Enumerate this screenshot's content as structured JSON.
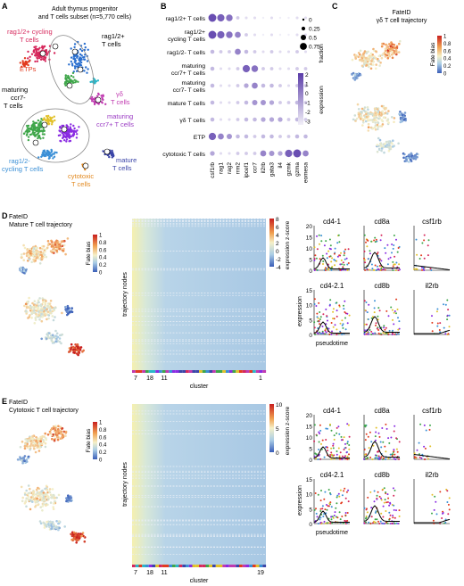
{
  "panelA": {
    "letter": "A",
    "title_line1": "Adult thymus progenitor",
    "title_line2": "and T cells subset (n=5,770 cells)",
    "labels": {
      "rag_cycling_1": "rag1/2+ cycling",
      "rag_cycling_2": "T cells",
      "etps": "ETPs",
      "rag_pos_1": "rag1/2+",
      "rag_pos_2": "T cells",
      "maturing_ccr7neg_1": "maturing",
      "maturing_ccr7neg_2": "ccr7-",
      "maturing_ccr7neg_3": "T cells",
      "gd_1": "γδ",
      "gd_2": "T cells",
      "maturing_ccr7pos_1": "maturing",
      "maturing_ccr7pos_2": "ccr7+ T cells",
      "rag_neg_cycling_1": "rag1/2-",
      "rag_neg_cycling_2": "cycling T cells",
      "mature_1": "mature",
      "mature_2": "T cells",
      "cytotoxic_1": "cytotoxic",
      "cytotoxic_2": "T cells"
    }
  },
  "panelB": {
    "letter": "B",
    "rows": [
      "rag1/2+ T cells",
      "rag1/2+ cycling T cells",
      "rag1/2- T cells",
      "maturing ccr7+ T cells",
      "maturing ccr7- T cells",
      "mature T cells",
      "γδ T cells",
      "ETP",
      "cytotoxic T cells"
    ],
    "row_display": [
      [
        "rag1/2+ T cells"
      ],
      [
        "rag1/2+",
        "cycling T cells"
      ],
      [
        "rag1/2- T cells"
      ],
      [
        "maturing",
        "ccr7+ T cells"
      ],
      [
        "maturing",
        "ccr7- T cells"
      ],
      [
        "mature T cells"
      ],
      [
        "γδ T cells"
      ],
      [
        "ETP"
      ],
      [
        "cytotoxic T cells"
      ]
    ],
    "genes": [
      "csf1rb",
      "rag1",
      "rag2",
      "rrm2",
      "ipcef1",
      "ccr7",
      "il2rb",
      "gata3",
      "il4",
      "gzmk",
      "gzma",
      "eomesa"
    ],
    "fraction_legend": {
      "title": "fraction",
      "values": [
        "0",
        "0.25",
        "0.5",
        "0.75"
      ]
    },
    "expression_legend": {
      "title": "expression",
      "ticks": [
        "2",
        "1",
        "0",
        "-1",
        "-2",
        "-3"
      ]
    }
  },
  "panelC": {
    "letter": "C",
    "title_line1": "FateID",
    "title_line2": "γδ T cell trajectory",
    "colorbar_title": "Fate bias",
    "colorbar_ticks": [
      "1",
      "0.8",
      "0.6",
      "0.4",
      "0.2",
      "0"
    ]
  },
  "panelD": {
    "letter": "D",
    "title_line1": "FateID",
    "title_line2": "Mature T cell trajectory",
    "colorbar_title": "Fate bias",
    "colorbar_ticks": [
      "1",
      "0.8",
      "0.6",
      "0.4",
      "0.2",
      "0"
    ],
    "heatmap": {
      "ylabel": "trajectory nodes",
      "xlabel": "cluster",
      "cluster_labels": [
        "7",
        "18",
        "11",
        "1"
      ],
      "zscore_title": "expression z-score",
      "zscore_ticks": [
        "8",
        "6",
        "4",
        "2",
        "0",
        "-2",
        "-4"
      ]
    },
    "genes": [
      "cd4-1",
      "cd8a",
      "csf1rb",
      "cd4-2.1",
      "cd8b",
      "il2rb"
    ],
    "yticks_top": [
      "20",
      "15",
      "10",
      "5",
      "0"
    ],
    "yticks_bottom": [
      "15",
      "10",
      "5",
      "0"
    ],
    "ylabel": "expression",
    "xlabel": "pseudotime"
  },
  "panelE": {
    "letter": "E",
    "title_line1": "FateID",
    "title_line2": "Cytotoxic T cell trajectory",
    "colorbar_title": "Fate bias",
    "colorbar_ticks": [
      "1",
      "0.8",
      "0.6",
      "0.4",
      "0.2",
      "0"
    ],
    "heatmap": {
      "ylabel": "trajectory nodes",
      "xlabel": "cluster",
      "cluster_labels": [
        "7",
        "18",
        "11",
        "19"
      ],
      "zscore_title": "expression z-score",
      "zscore_ticks": [
        "10",
        "5",
        "0"
      ]
    },
    "genes": [
      "cd4-1",
      "cd8a",
      "csf1rb",
      "cd4-2.1",
      "cd8b",
      "il2rb"
    ],
    "yticks_top": [
      "20",
      "15",
      "10",
      "5",
      "0"
    ],
    "yticks_bottom": [
      "15",
      "10",
      "5",
      "0"
    ],
    "ylabel": "expression",
    "xlabel": "pseudotime"
  }
}
